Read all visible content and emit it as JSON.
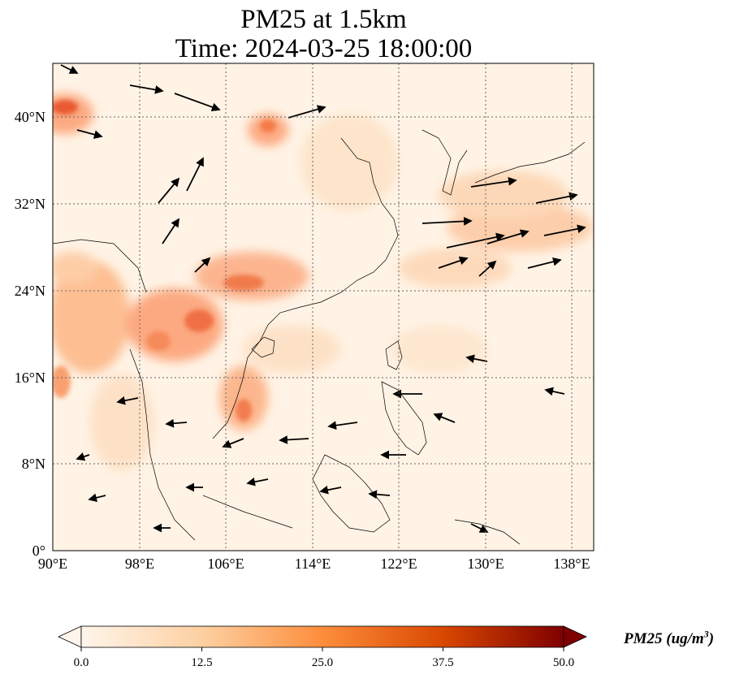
{
  "title": {
    "line1": "PM25 at 1.5km",
    "line2": "Time: 2024-03-25 18:00:00"
  },
  "map": {
    "lon_ticks": [
      "90°E",
      "98°E",
      "106°E",
      "114°E",
      "122°E",
      "130°E",
      "138°E"
    ],
    "lat_ticks": [
      "0°",
      "8°N",
      "16°N",
      "24°N",
      "32°N",
      "40°N"
    ],
    "lon_range": [
      90,
      140
    ],
    "lat_range": [
      0,
      45
    ],
    "gridlines": true,
    "wind_vectors": true
  },
  "colorbar": {
    "label": "PM25 (ug/m$^3$)",
    "label_display": "PM25 (ug/m3)",
    "ticks": [
      "0.0",
      "12.5",
      "25.0",
      "37.5",
      "50.0"
    ],
    "range": [
      0,
      50
    ],
    "colormap": [
      "#fff5eb",
      "#fdd0a2",
      "#fd8d3c",
      "#d94801",
      "#7f0000"
    ],
    "extend": "both"
  }
}
